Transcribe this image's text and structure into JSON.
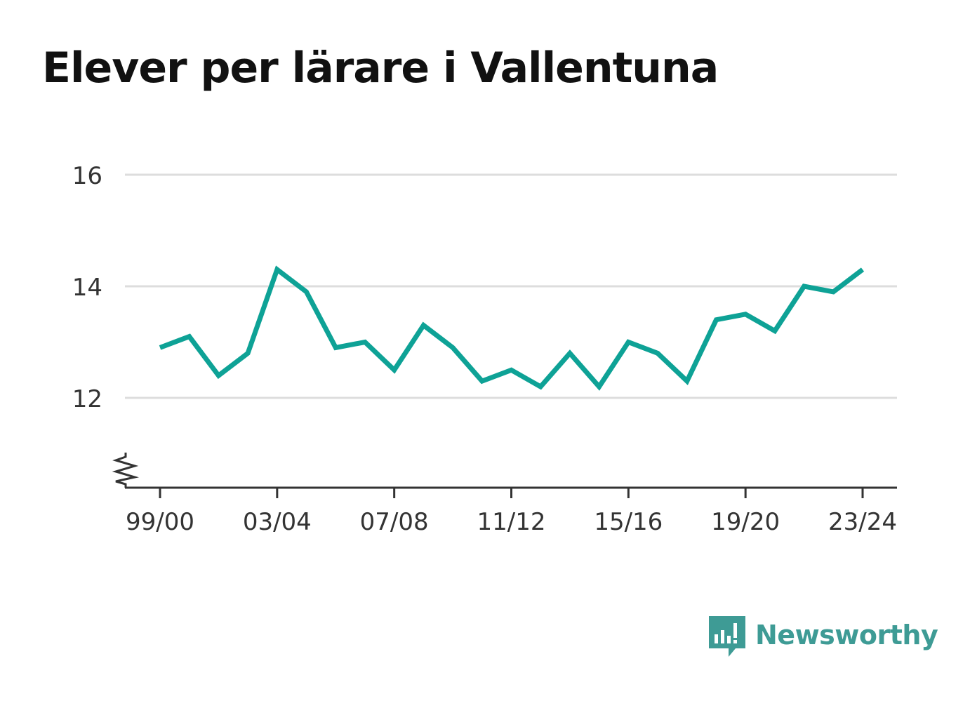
{
  "title": "Elever per lärare i Vallentuna",
  "brand": {
    "name": "Newsworthy",
    "icon": "newsworthy-logo-icon",
    "color": "#3e9b95"
  },
  "chart_data": {
    "type": "line",
    "title": "Elever per lärare i Vallentuna",
    "xlabel": "",
    "ylabel": "",
    "categories": [
      "99/00",
      "00/01",
      "01/02",
      "02/03",
      "03/04",
      "04/05",
      "05/06",
      "06/07",
      "07/08",
      "08/09",
      "09/10",
      "10/11",
      "11/12",
      "12/13",
      "13/14",
      "14/15",
      "15/16",
      "16/17",
      "17/18",
      "18/19",
      "19/20",
      "20/21",
      "21/22",
      "22/23",
      "23/24"
    ],
    "x_tick_labels": [
      "99/00",
      "03/04",
      "07/08",
      "11/12",
      "15/16",
      "19/20",
      "23/24"
    ],
    "series": [
      {
        "color": "#0ea296",
        "values": [
          12.9,
          13.1,
          12.4,
          12.8,
          14.3,
          13.9,
          12.9,
          13.0,
          12.5,
          13.3,
          12.9,
          12.3,
          12.5,
          12.2,
          12.8,
          12.2,
          13.0,
          12.8,
          12.3,
          13.4,
          13.5,
          13.2,
          14.0,
          13.9,
          14.3
        ]
      }
    ],
    "y_ticks": [
      12,
      14,
      16
    ],
    "ylim": [
      10.4,
      16
    ],
    "axis_break": true,
    "grid": true,
    "legend": "none",
    "colors": {
      "line": "#0ea296",
      "grid": "#dddddd",
      "axis": "#333333",
      "tick_text": "#333333"
    }
  }
}
